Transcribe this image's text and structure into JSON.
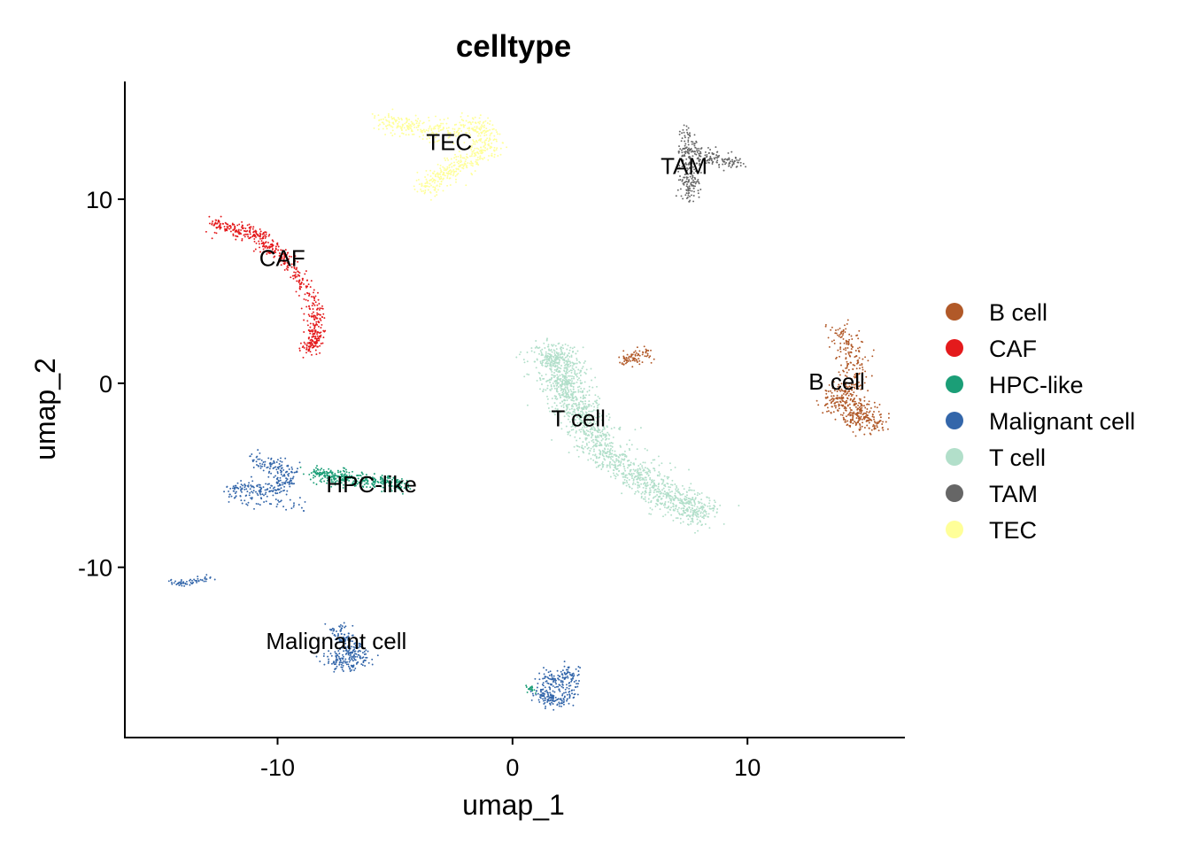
{
  "chart_data": {
    "type": "scatter",
    "title": "celltype",
    "xlabel": "umap_1",
    "ylabel": "umap_2",
    "xlim": [
      -16.5,
      16.7
    ],
    "ylim": [
      -19.3,
      16.4
    ],
    "xticks": [
      -10,
      0,
      10
    ],
    "yticks": [
      10,
      0,
      -10
    ],
    "grid": false,
    "legend_position": "right",
    "series": [
      {
        "name": "B cell",
        "color": "#B15928",
        "clusters": [
          {
            "x": [
              13.9,
              14.2,
              14.5,
              14.6,
              14.4,
              14.0,
              13.8,
              14.1,
              14.6,
              15.1,
              15.3,
              14.7
            ],
            "y": [
              2.8,
              2.4,
              1.6,
              0.6,
              -0.2,
              -0.6,
              -1.0,
              -1.4,
              -1.8,
              -2.1,
              -2.2,
              -1.0
            ],
            "spread": 0.45,
            "n": 520
          },
          {
            "x": [
              4.6,
              5.0,
              5.4,
              5.7
            ],
            "y": [
              1.2,
              1.4,
              1.5,
              1.7
            ],
            "spread": 0.25,
            "n": 80
          }
        ]
      },
      {
        "name": "CAF",
        "color": "#E41A1C",
        "clusters": [
          {
            "x": [
              -12.7,
              -12.2,
              -11.6,
              -11.0,
              -10.4,
              -10.0,
              -9.4,
              -8.9,
              -8.5,
              -8.3,
              -8.4,
              -8.5,
              -8.7
            ],
            "y": [
              8.7,
              8.5,
              8.3,
              8.0,
              7.5,
              7.0,
              6.4,
              5.4,
              4.2,
              3.5,
              2.8,
              2.2,
              1.8
            ],
            "spread": 0.28,
            "n": 560
          }
        ]
      },
      {
        "name": "HPC-like",
        "color": "#1B9E77",
        "clusters": [
          {
            "x": [
              -8.5,
              -7.8,
              -7.0,
              -6.2,
              -5.4,
              -4.6
            ],
            "y": [
              -4.9,
              -5.0,
              -5.2,
              -5.3,
              -5.4,
              -5.5
            ],
            "spread": 0.28,
            "n": 360
          },
          {
            "x": [
              0.7,
              0.9
            ],
            "y": [
              -16.5,
              -16.7
            ],
            "spread": 0.15,
            "n": 20
          }
        ]
      },
      {
        "name": "Malignant cell",
        "color": "#3366AA",
        "clusters": [
          {
            "x": [
              -10.9,
              -10.2,
              -9.4,
              -9.9,
              -10.6,
              -11.4,
              -12.0,
              -9.0
            ],
            "y": [
              -4.2,
              -4.5,
              -4.9,
              -5.6,
              -5.9,
              -5.5,
              -6.1,
              -6.6
            ],
            "spread": 0.3,
            "n": 320
          },
          {
            "x": [
              -14.6,
              -14.0,
              -13.4,
              -12.9
            ],
            "y": [
              -10.8,
              -10.9,
              -10.7,
              -10.6
            ],
            "spread": 0.12,
            "n": 60
          },
          {
            "x": [
              -7.4,
              -7.2,
              -6.8,
              -6.5,
              -7.6,
              -7.0
            ],
            "y": [
              -13.3,
              -14.0,
              -14.5,
              -15.1,
              -15.2,
              -14.8
            ],
            "spread": 0.35,
            "n": 260
          },
          {
            "x": [
              1.1,
              1.5,
              2.0,
              2.4,
              2.6,
              1.4,
              2.0
            ],
            "y": [
              -16.7,
              -17.1,
              -17.2,
              -16.6,
              -15.6,
              -16.0,
              -16.4
            ],
            "spread": 0.3,
            "n": 280
          }
        ]
      },
      {
        "name": "T cell",
        "color": "#B2DFCA",
        "clusters": [
          {
            "x": [
              1.2,
              1.8,
              2.4,
              2.2,
              2.7,
              3.3,
              4.0,
              4.9,
              5.8,
              6.7,
              7.6,
              8.1,
              1.4,
              3.6
            ],
            "y": [
              1.3,
              1.5,
              1.0,
              -0.5,
              -1.7,
              -2.8,
              -3.8,
              -4.8,
              -5.7,
              -6.3,
              -6.8,
              -7.0,
              0.3,
              -1.2
            ],
            "spread": 0.55,
            "n": 1700
          }
        ]
      },
      {
        "name": "TAM",
        "color": "#666666",
        "clusters": [
          {
            "x": [
              7.4,
              7.5,
              7.6,
              7.7,
              7.6,
              7.4,
              7.3,
              8.0,
              8.6,
              9.3,
              9.6
            ],
            "y": [
              13.8,
              13.0,
              12.2,
              11.4,
              10.6,
              10.0,
              12.6,
              12.4,
              12.2,
              12.1,
              12.0
            ],
            "spread": 0.28,
            "n": 340
          }
        ]
      },
      {
        "name": "TEC",
        "color": "#FFFF99",
        "clusters": [
          {
            "x": [
              -5.5,
              -4.6,
              -3.6,
              -2.6,
              -1.6,
              -1.0,
              -1.2,
              -2.0,
              -2.8,
              -3.3,
              -3.7
            ],
            "y": [
              14.2,
              14.0,
              13.8,
              13.7,
              14.1,
              13.4,
              12.4,
              12.2,
              11.5,
              11.0,
              10.7
            ],
            "spread": 0.4,
            "n": 640
          }
        ]
      }
    ],
    "annotations": [
      {
        "text": "TEC",
        "x": -2.7,
        "y": 13.1
      },
      {
        "text": "TAM",
        "x": 7.3,
        "y": 11.8
      },
      {
        "text": "CAF",
        "x": -9.8,
        "y": 6.8
      },
      {
        "text": "B cell",
        "x": 13.8,
        "y": 0.1
      },
      {
        "text": "T cell",
        "x": 2.8,
        "y": -1.9
      },
      {
        "text": "HPC-like",
        "x": -6.0,
        "y": -5.5
      },
      {
        "text": "Malignant cell",
        "x": -7.5,
        "y": -14.0
      }
    ]
  }
}
